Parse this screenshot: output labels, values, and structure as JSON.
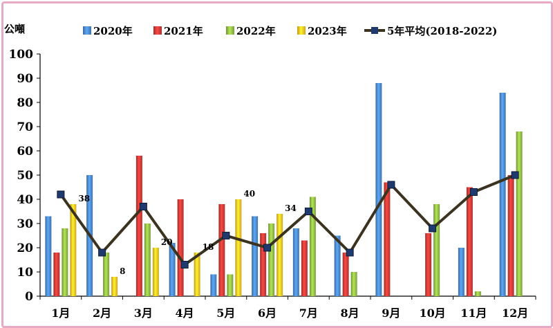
{
  "chart_data": {
    "type": "bar",
    "unit_label": "公噸",
    "categories": [
      "1月",
      "2月",
      "3月",
      "4月",
      "5月",
      "6月",
      "7月",
      "8月",
      "9月",
      "10月",
      "11月",
      "12月"
    ],
    "ylim": [
      0,
      100
    ],
    "yticks": [
      0,
      10,
      20,
      30,
      40,
      50,
      60,
      70,
      80,
      90,
      100
    ],
    "grid": false,
    "legend_position": "top",
    "series": [
      {
        "name": "2020年",
        "kind": "bar",
        "color": "#4a86c8",
        "values": [
          33,
          50,
          0,
          22,
          9,
          33,
          28,
          25,
          88,
          0,
          20,
          84
        ]
      },
      {
        "name": "2021年",
        "kind": "bar",
        "color": "#c93a36",
        "values": [
          18,
          0,
          58,
          40,
          38,
          26,
          23,
          18,
          47,
          26,
          45,
          50
        ]
      },
      {
        "name": "2022年",
        "kind": "bar",
        "color": "#8fb944",
        "values": [
          28,
          18,
          30,
          0,
          9,
          30,
          41,
          10,
          0,
          38,
          2,
          68
        ]
      },
      {
        "name": "2023年",
        "kind": "bar",
        "color": "#f3c224",
        "values": [
          38,
          8,
          20,
          18,
          40,
          34,
          null,
          null,
          null,
          null,
          null,
          null
        ],
        "data_labels": [
          "38",
          "8",
          "20",
          "18",
          "40",
          "34",
          "",
          "",
          "",
          "",
          "",
          ""
        ]
      },
      {
        "name": "5年平均(2018-2022)",
        "kind": "line",
        "color": "#3b3320",
        "marker_color": "#1f3a6e",
        "values": [
          42,
          18,
          37,
          13,
          25,
          20,
          35,
          18,
          46,
          28,
          43,
          50
        ]
      }
    ]
  }
}
